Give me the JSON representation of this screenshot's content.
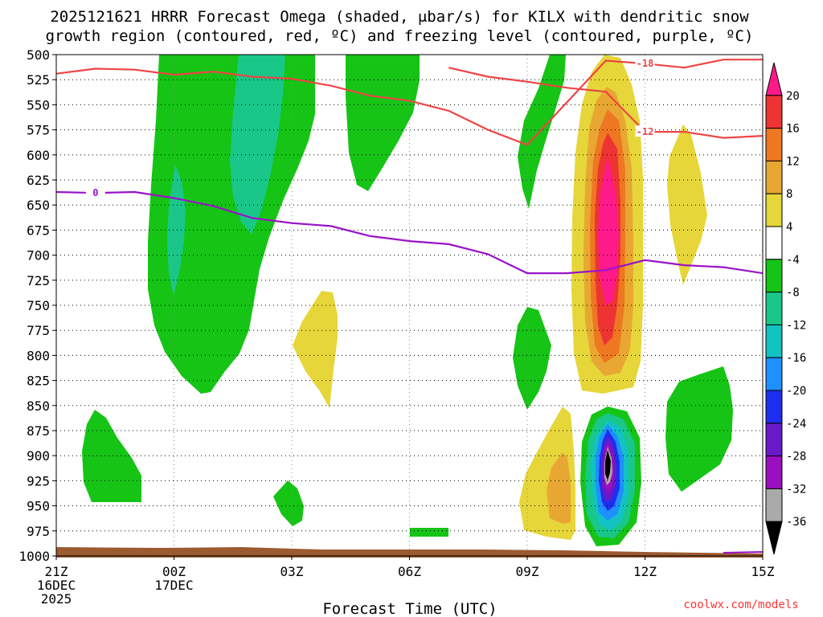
{
  "chart_data": {
    "type": "heatmap",
    "title_line1": "2025121621 HRRR Forecast Omega (shaded, μbar/s) for KILX with dendritic snow",
    "title_line2": "growth region (contoured, red, ºC) and freezing level (contoured, purple, ºC)",
    "xlabel": "Forecast Time (UTC)",
    "credit": "coolwx.com/models",
    "x_range_hours": [
      0,
      18
    ],
    "y_range_hpa": [
      1000,
      500
    ],
    "x_ticks": [
      {
        "hour": 0,
        "lines": [
          "21Z",
          "16DEC",
          "2025"
        ]
      },
      {
        "hour": 3,
        "lines": [
          "00Z",
          "17DEC"
        ]
      },
      {
        "hour": 6,
        "lines": [
          "03Z"
        ]
      },
      {
        "hour": 9,
        "lines": [
          "06Z"
        ]
      },
      {
        "hour": 12,
        "lines": [
          "09Z"
        ]
      },
      {
        "hour": 15,
        "lines": [
          "12Z"
        ]
      },
      {
        "hour": 18,
        "lines": [
          "15Z"
        ]
      }
    ],
    "y_ticks": [
      "500",
      "525",
      "550",
      "575",
      "600",
      "625",
      "650",
      "675",
      "700",
      "725",
      "750",
      "775",
      "800",
      "825",
      "850",
      "875",
      "900",
      "925",
      "950",
      "975",
      "1000"
    ],
    "colorbar": {
      "labels": [
        "20",
        "16",
        "12",
        "8",
        "4",
        "-4",
        "-8",
        "-12",
        "-16",
        "-20",
        "-24",
        "-28",
        "-32",
        "-36"
      ],
      "colors": [
        "#ff1a8c",
        "#ee3333",
        "#ee7722",
        "#e8a732",
        "#e6d63a",
        "#ffffff",
        "#16c416",
        "#19c789",
        "#13c2c2",
        "#1e90ff",
        "#1e2eee",
        "#6a19c8",
        "#9a0fc0",
        "#aaaaaa",
        "#000000"
      ]
    },
    "colors": {
      "green": "#16c416",
      "teal": "#19c789",
      "cyan": "#13c2c2",
      "yellow": "#e6d63a",
      "gold": "#e8a732",
      "orange": "#ee7722",
      "red": "#ee3333",
      "magenta": "#ff1a8c",
      "blue": "#1e90ff",
      "darkblue": "#1e2eee",
      "purple": "#6a19c8",
      "violet": "#9a0fc0",
      "gray": "#aaaaaa",
      "black": "#000000",
      "ground": "#9c5a30",
      "dgz_line": "#ee4444",
      "freeze_line": "#9a12c8"
    },
    "series": [
      {
        "name": "-18C isotherm",
        "label": "-18",
        "label_at": [
          15,
          509
        ],
        "points": [
          [
            0,
            519
          ],
          [
            1,
            514
          ],
          [
            2,
            515
          ],
          [
            3,
            520
          ],
          [
            4,
            517
          ],
          [
            5,
            522
          ],
          [
            6,
            524
          ],
          [
            7,
            531
          ],
          [
            8,
            541
          ],
          [
            9,
            546
          ],
          [
            10,
            556
          ],
          [
            11,
            575
          ],
          [
            12,
            590
          ],
          [
            14,
            506
          ],
          [
            15,
            509
          ],
          [
            16,
            513
          ],
          [
            17,
            505
          ],
          [
            18,
            505
          ]
        ]
      },
      {
        "name": "-12C isotherm",
        "label": "-12",
        "label_at": [
          15,
          577
        ],
        "points": [
          [
            10,
            513
          ],
          [
            11,
            522
          ],
          [
            12,
            527
          ],
          [
            13,
            533
          ],
          [
            14,
            537
          ],
          [
            15,
            577
          ],
          [
            16,
            577
          ],
          [
            17,
            583
          ],
          [
            18,
            581
          ]
        ]
      },
      {
        "name": "0C isotherm (freezing level)",
        "label": "0",
        "label_at": [
          1,
          638
        ],
        "points": [
          [
            0,
            637
          ],
          [
            1,
            638
          ],
          [
            2,
            637
          ],
          [
            3,
            643
          ],
          [
            4,
            651
          ],
          [
            5,
            663
          ],
          [
            6,
            668
          ],
          [
            7,
            671
          ],
          [
            8,
            681
          ],
          [
            9,
            686
          ],
          [
            10,
            689
          ],
          [
            11,
            699
          ],
          [
            12,
            718
          ],
          [
            13,
            718
          ],
          [
            14,
            715
          ],
          [
            15,
            705
          ],
          [
            16,
            710
          ],
          [
            17,
            712
          ],
          [
            18,
            718
          ]
        ]
      }
    ]
  }
}
